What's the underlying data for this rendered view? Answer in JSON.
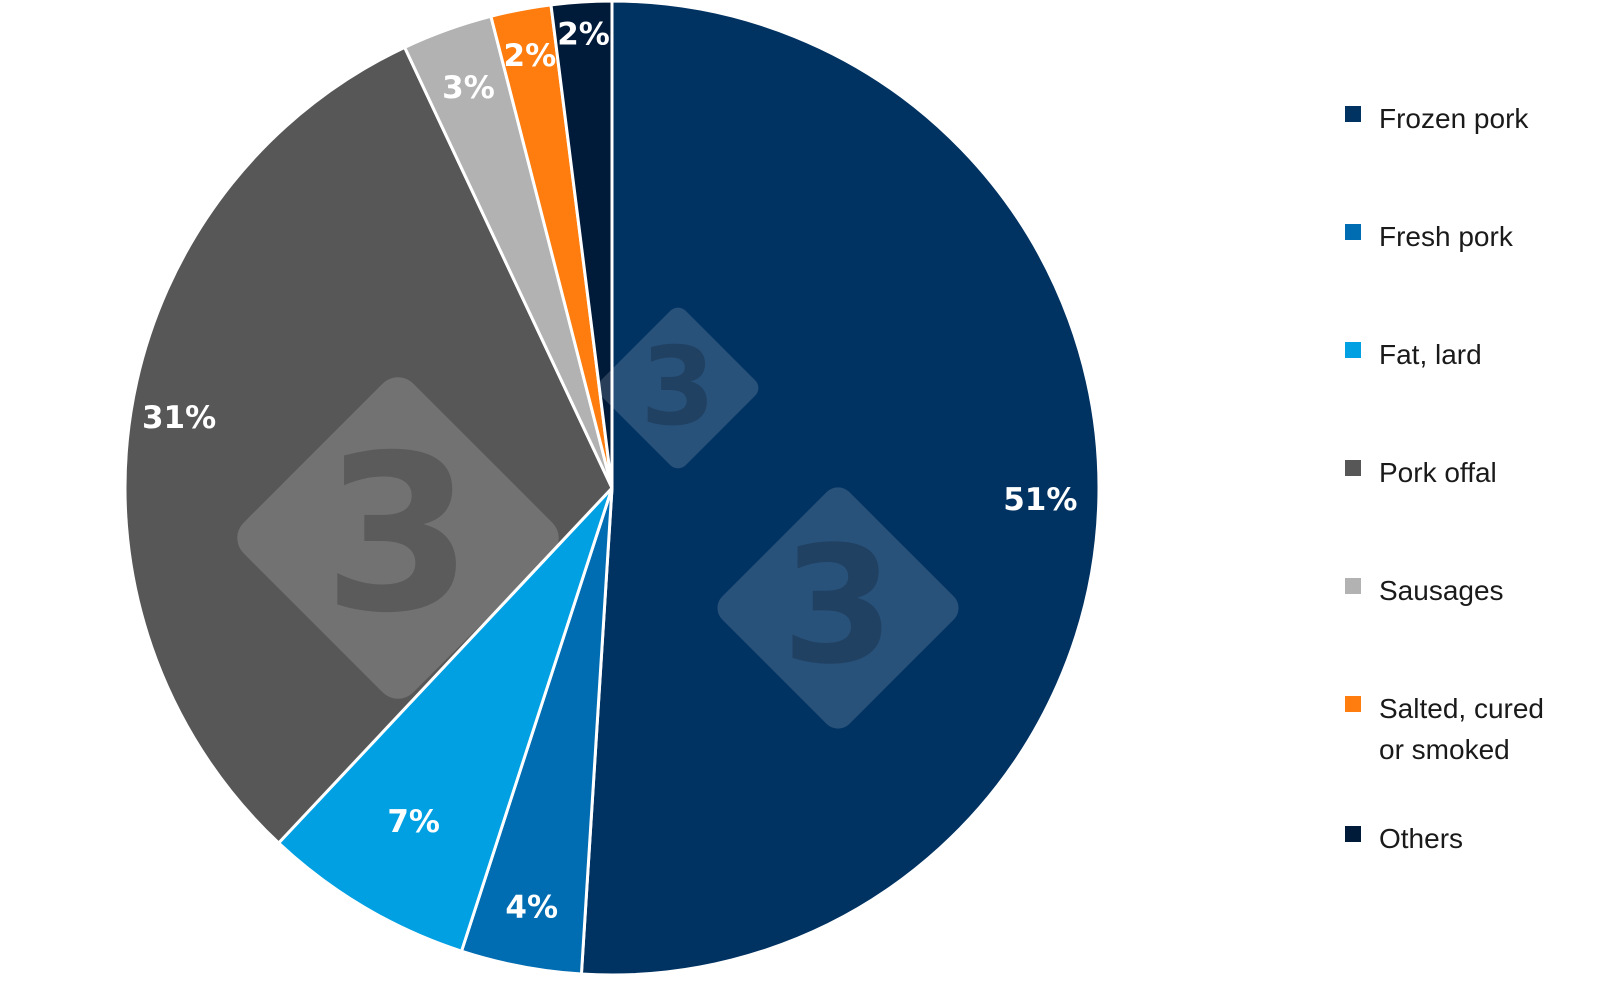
{
  "chart_data": {
    "type": "pie",
    "title": "",
    "slices": [
      {
        "name": "Frozen pork",
        "value": 51,
        "label": "51%",
        "color": "#003262"
      },
      {
        "name": "Fresh pork",
        "value": 4,
        "label": "4%",
        "color": "#006cb2"
      },
      {
        "name": "Fat, lard",
        "value": 7,
        "label": "7%",
        "color": "#00a0e3"
      },
      {
        "name": "Pork offal",
        "value": 31,
        "label": "31%",
        "color": "#575757"
      },
      {
        "name": "Sausages",
        "value": 3,
        "label": "3%",
        "color": "#b2b2b2"
      },
      {
        "name": "Salted, cured\nor smoked",
        "value": 2,
        "label": "2%",
        "color": "#ff7c0e"
      },
      {
        "name": "Others",
        "value": 2,
        "label": "2%",
        "color": "#001a3a"
      }
    ],
    "legend_position": "right"
  },
  "watermark": {
    "glyph": "3"
  }
}
